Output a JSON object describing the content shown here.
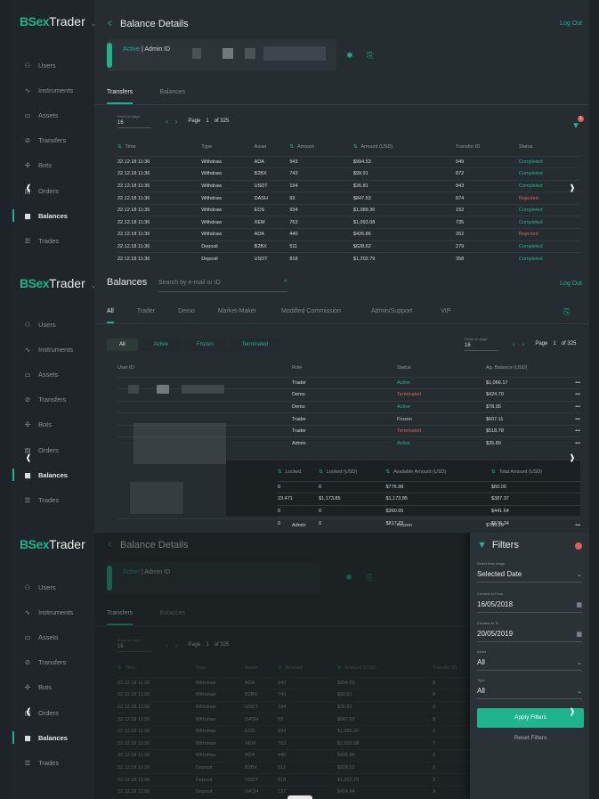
{
  "brand": {
    "short": "BSex",
    "name": "Trader",
    "caret": "⌄"
  },
  "nav": [
    {
      "label": "Users",
      "icon": "user-icon"
    },
    {
      "label": "Instruments",
      "icon": "pulse-icon"
    },
    {
      "label": "Assets",
      "icon": "wallet-icon"
    },
    {
      "label": "Transfers",
      "icon": "link-icon"
    },
    {
      "label": "Bots",
      "icon": "bot-icon"
    },
    {
      "label": "Orders",
      "icon": "orders-icon"
    },
    {
      "label": "Balances",
      "icon": "calendar-icon"
    },
    {
      "label": "Trades",
      "icon": "list-icon"
    }
  ],
  "active_nav": "Balances",
  "logout": "Log Out",
  "balance_details": {
    "title": "Balance Details",
    "status": "Active",
    "sep": " | ",
    "admin_id_label": "Admin ID",
    "tabs": [
      "Transfers",
      "Balances"
    ],
    "pager": {
      "rpp_label": "Rows on page",
      "rpp": "16",
      "page_label": "Page",
      "page": "1",
      "of": "of 325"
    },
    "filter_count": "1",
    "columns": [
      "Time",
      "Type",
      "Asset",
      "Amount",
      "Amount (USD)",
      "Transfer ID",
      "Status"
    ],
    "rows": [
      [
        "22.12.18 11:36",
        "Withdraw",
        "ADA",
        "943",
        "$994.53",
        "949",
        "Completed"
      ],
      [
        "22.12.18 11:36",
        "Withdraw",
        "B2BX",
        "743",
        "$99.91",
        "872",
        "Completed"
      ],
      [
        "22.12.18 11:36",
        "Withdraw",
        "USDT",
        "194",
        "$26.81",
        "943",
        "Completed"
      ],
      [
        "22.12.18 11:36",
        "Withdraw",
        "DASH",
        "93",
        "$847.53",
        "874",
        "Rejected"
      ],
      [
        "22.12.18 11:36",
        "Withdraw",
        "EOS",
        "934",
        "$1,089.36",
        "152",
        "Completed"
      ],
      [
        "22.12.18 11:36",
        "Withdraw",
        "XEM",
        "763",
        "$1,093.08",
        "735",
        "Completed"
      ],
      [
        "22.12.18 11:36",
        "Withdraw",
        "ADA",
        "440",
        "$426.86",
        "262",
        "Rejected"
      ],
      [
        "22.12.18 11:36",
        "Deposit",
        "B2BX",
        "511",
        "$628.62",
        "279",
        "Completed"
      ],
      [
        "22.12.18 11:36",
        "Deposit",
        "USDT",
        "818",
        "$1,202.79",
        "358",
        "Completed"
      ]
    ]
  },
  "balances": {
    "title": "Balances",
    "search_placeholder": "Search by e-mail or ID",
    "tabs": [
      "All",
      "Trader",
      "Demo",
      "Market-Maker",
      "Modified Commission",
      "Admin/Support",
      "VIP"
    ],
    "chips": [
      "All",
      "Active",
      "Frozen",
      "Terminated"
    ],
    "pager": {
      "rpp_label": "Rows on page",
      "rpp": "16",
      "page_label": "Page",
      "page": "1",
      "of": "of 325"
    },
    "columns": [
      "User ID",
      "Role",
      "Status",
      "Ag. Balance (USD)"
    ],
    "rows": [
      [
        "Trader",
        "Active",
        "$1,066.17"
      ],
      [
        "Demo",
        "Terminated",
        "$424.70"
      ],
      [
        "Demo",
        "Active",
        "$78.95"
      ],
      [
        "Trader",
        "Frozen",
        "$607.11"
      ],
      [
        "Trader",
        "Terminated",
        "$518.78"
      ],
      [
        "Admin",
        "Active",
        "$35.89"
      ]
    ],
    "more": "•••",
    "sub_columns": [
      "Locked",
      "Locked (USD)",
      "Available Amount (USD)",
      "Total Amount (USD)"
    ],
    "sub_rows": [
      [
        "0",
        "0",
        "$776.98",
        "$60.00"
      ],
      [
        "23.471",
        "$1,173.85",
        "$1,173.85",
        "$387.37"
      ],
      [
        "0",
        "0",
        "$360.65",
        "$441.64"
      ],
      [
        "0",
        "0",
        "$817.23",
        "$676.34"
      ]
    ],
    "after_rows": [
      [
        "Admin",
        "Frozen",
        "$706.29"
      ]
    ]
  },
  "filters": {
    "title": "Filters",
    "fields": [
      {
        "label": "Select time range",
        "value": "Selected Date",
        "icon": "chevron-down-icon"
      },
      {
        "label": "Created At From",
        "value": "16/05/2018",
        "icon": "calendar-icon"
      },
      {
        "label": "Created At To",
        "value": "20/05/2019",
        "icon": "calendar-icon"
      },
      {
        "label": "Asset",
        "value": "All",
        "icon": "chevron-down-icon"
      },
      {
        "label": "Type",
        "value": "All",
        "icon": "chevron-down-icon"
      }
    ],
    "apply": "Apply Filters",
    "reset": "Reset Filters"
  },
  "p3_rows": [
    [
      "22.12.18 11:36",
      "Withdraw",
      "ADA",
      "943",
      "$994.53",
      "9"
    ],
    [
      "22.12.18 11:36",
      "Withdraw",
      "B2BX",
      "743",
      "$99.91",
      "8"
    ],
    [
      "22.12.18 11:36",
      "Withdraw",
      "USDT",
      "194",
      "$26.81",
      "9"
    ],
    [
      "22.12.18 11:36",
      "Withdraw",
      "DASH",
      "93",
      "$847.53",
      "8"
    ],
    [
      "22.12.18 11:36",
      "Withdraw",
      "EOS",
      "934",
      "$1,089.36",
      "1"
    ],
    [
      "22.12.18 11:36",
      "Withdraw",
      "XEM",
      "763",
      "$1,093.08",
      "7"
    ],
    [
      "22.12.18 11:36",
      "Withdraw",
      "ADA",
      "440",
      "$426.86",
      "2"
    ],
    [
      "22.12.18 11:36",
      "Deposit",
      "B2BX",
      "511",
      "$628.62",
      "2"
    ],
    [
      "22.12.18 11:36",
      "Deposit",
      "USDT",
      "818",
      "$1,202.79",
      "3"
    ],
    [
      "22.12.18 11:36",
      "Deposit",
      "DASH",
      "137",
      "$434.64",
      "3"
    ]
  ],
  "carousel": {
    "prev": "‹",
    "next": "›"
  },
  "colors": {
    "accent": "#1fb48c",
    "danger": "#e25d5d",
    "bg": "#262d30"
  }
}
